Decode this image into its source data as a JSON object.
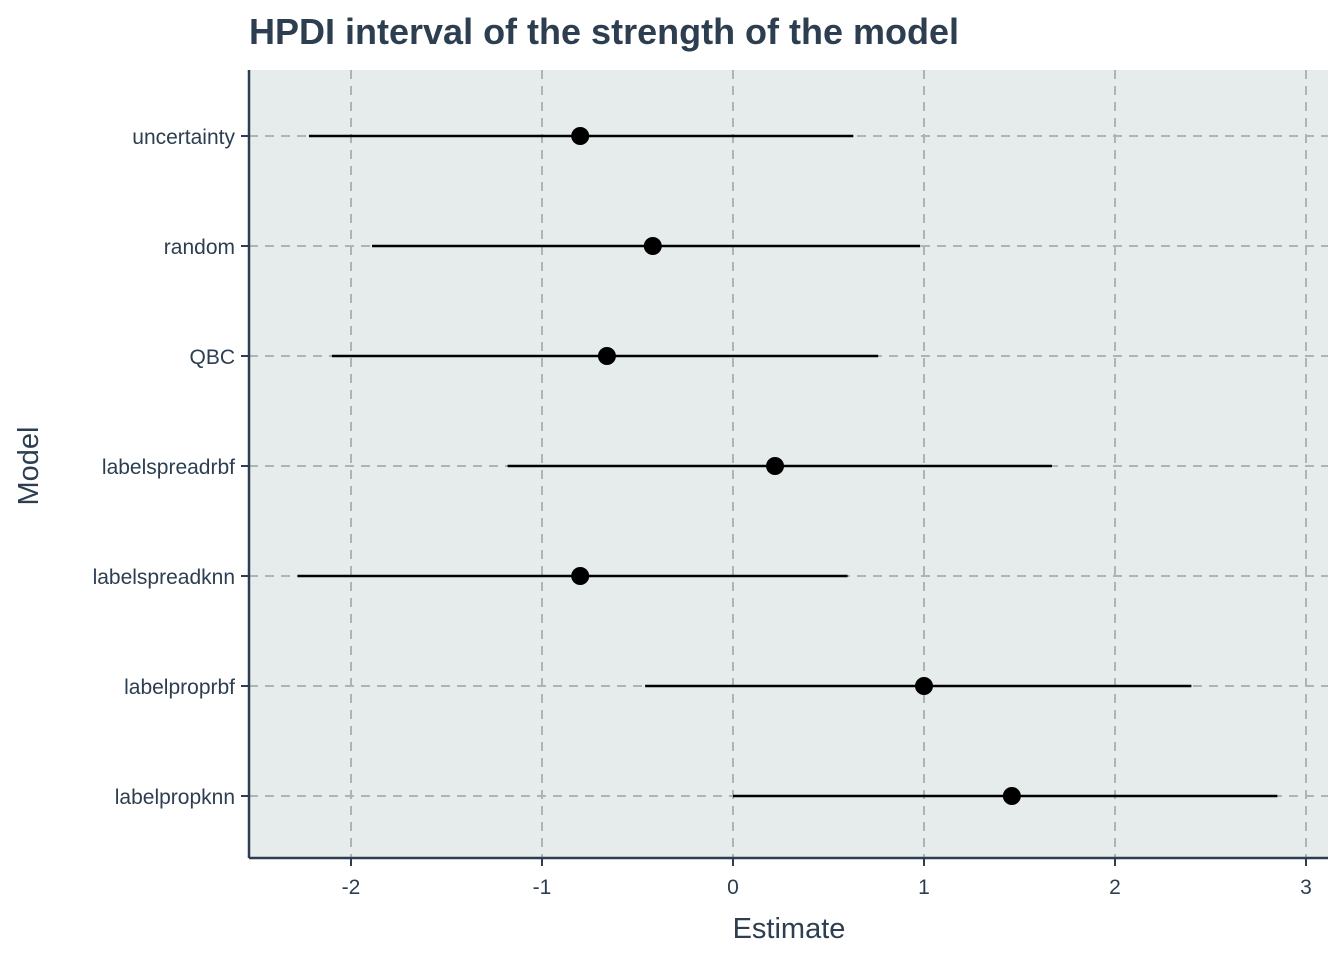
{
  "chart_data": {
    "type": "scatter",
    "title": "HPDI interval of the strength of the model",
    "xlabel": "Estimate",
    "ylabel": "Model",
    "xlim": [
      -2.6,
      3.1
    ],
    "xticks": [
      -2,
      -1,
      0,
      1,
      2,
      3
    ],
    "grid": true,
    "legend": "none",
    "categories": [
      "uncertainty",
      "random",
      "QBC",
      "labelspreadrbf",
      "labelspreadknn",
      "labelproprbf",
      "labelpropknn"
    ],
    "series": [
      {
        "points": [
          {
            "model": "uncertainty",
            "estimate": -0.8,
            "lower": -2.22,
            "upper": 0.63
          },
          {
            "model": "random",
            "estimate": -0.42,
            "lower": -1.89,
            "upper": 0.98
          },
          {
            "model": "QBC",
            "estimate": -0.66,
            "lower": -2.1,
            "upper": 0.76
          },
          {
            "model": "labelspreadrbf",
            "estimate": 0.22,
            "lower": -1.18,
            "upper": 1.67
          },
          {
            "model": "labelspreadknn",
            "estimate": -0.8,
            "lower": -2.28,
            "upper": 0.6
          },
          {
            "model": "labelproprbf",
            "estimate": 1.0,
            "lower": -0.46,
            "upper": 2.4
          },
          {
            "model": "labelpropknn",
            "estimate": 1.46,
            "lower": 0.0,
            "upper": 2.85
          }
        ]
      }
    ],
    "colors": {
      "panel": "#e6ecec",
      "grid": "#aeb3b3",
      "axis": "#2c3e50",
      "marks": "#000000"
    }
  }
}
